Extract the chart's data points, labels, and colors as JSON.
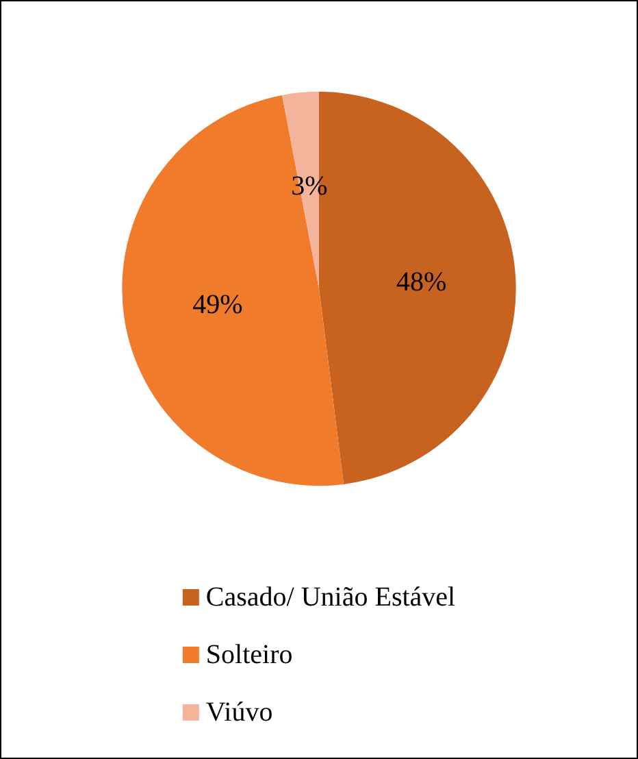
{
  "chart_data": {
    "type": "pie",
    "categories": [
      "Casado/ União Estável",
      "Solteiro",
      "Viúvo"
    ],
    "values": [
      48,
      49,
      3
    ],
    "colors": [
      "#c8621f",
      "#f07b2b",
      "#f3b49b"
    ],
    "value_labels": [
      "48%",
      "49%",
      "3%"
    ],
    "legend": "bottom"
  }
}
